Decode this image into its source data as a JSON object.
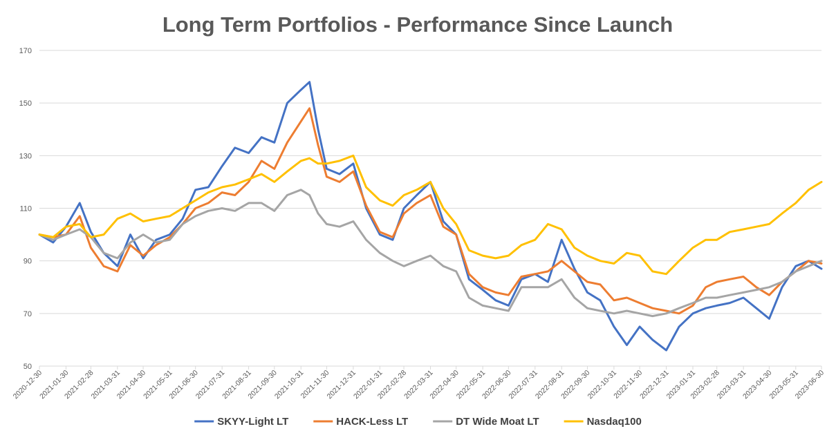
{
  "chart_data": {
    "type": "line",
    "title": "Long Term Portfolios - Performance Since Launch",
    "xlabel": "",
    "ylabel": "",
    "ylim": [
      50,
      170
    ],
    "yticks": [
      50,
      70,
      90,
      110,
      130,
      150,
      170
    ],
    "grid": true,
    "legend_position": "bottom",
    "x_tick_labels": [
      "2020-12-30",
      "2021-01-30",
      "2021-02-28",
      "2021-03-31",
      "2021-04-30",
      "2021-05-31",
      "2021-06-30",
      "2021-07-31",
      "2021-08-31",
      "2021-09-30",
      "2021-10-31",
      "2021-11-30",
      "2021-12-31",
      "2022-01-31",
      "2022-02-28",
      "2022-03-31",
      "2022-04-30",
      "2022-05-31",
      "2022-06-30",
      "2022-07-31",
      "2022-08-31",
      "2022-09-30",
      "2022-10-31",
      "2022-11-30",
      "2022-12-31",
      "2023-01-31",
      "2023-02-28",
      "2023-03-31",
      "2023-04-30",
      "2023-05-31",
      "2023-06-30"
    ],
    "x": [
      "2020-12-30",
      "2021-01-15",
      "2021-01-30",
      "2021-02-15",
      "2021-02-28",
      "2021-03-15",
      "2021-03-31",
      "2021-04-15",
      "2021-04-30",
      "2021-05-15",
      "2021-05-31",
      "2021-06-15",
      "2021-06-30",
      "2021-07-15",
      "2021-07-31",
      "2021-08-15",
      "2021-08-31",
      "2021-09-15",
      "2021-09-30",
      "2021-10-15",
      "2021-10-31",
      "2021-11-10",
      "2021-11-20",
      "2021-11-30",
      "2021-12-15",
      "2021-12-31",
      "2022-01-15",
      "2022-01-31",
      "2022-02-15",
      "2022-02-28",
      "2022-03-15",
      "2022-03-31",
      "2022-04-15",
      "2022-04-30",
      "2022-05-15",
      "2022-05-31",
      "2022-06-15",
      "2022-06-30",
      "2022-07-15",
      "2022-07-31",
      "2022-08-15",
      "2022-08-31",
      "2022-09-15",
      "2022-09-30",
      "2022-10-15",
      "2022-10-31",
      "2022-11-15",
      "2022-11-30",
      "2022-12-15",
      "2022-12-31",
      "2023-01-15",
      "2023-01-31",
      "2023-02-15",
      "2023-02-28",
      "2023-03-15",
      "2023-03-31",
      "2023-04-15",
      "2023-04-30",
      "2023-05-15",
      "2023-05-31",
      "2023-06-15",
      "2023-06-30"
    ],
    "series": [
      {
        "name": "SKYY-Light LT",
        "color": "#4472c4",
        "values": [
          100,
          97,
          103,
          112,
          101,
          93,
          88,
          100,
          91,
          98,
          100,
          106,
          117,
          118,
          126,
          133,
          131,
          137,
          135,
          150,
          155,
          158,
          140,
          125,
          123,
          127,
          110,
          100,
          98,
          110,
          115,
          120,
          105,
          100,
          83,
          79,
          75,
          73,
          83,
          85,
          82,
          98,
          87,
          78,
          75,
          65,
          58,
          65,
          60,
          56,
          65,
          70,
          72,
          73,
          74,
          76,
          72,
          68,
          80,
          88,
          90,
          87
        ]
      },
      {
        "name": "HACK-Less LT",
        "color": "#ed7d31",
        "values": [
          100,
          99,
          100,
          107,
          95,
          88,
          86,
          96,
          92,
          96,
          99,
          104,
          110,
          112,
          116,
          115,
          120,
          128,
          125,
          135,
          143,
          148,
          134,
          122,
          120,
          124,
          111,
          101,
          99,
          108,
          112,
          115,
          103,
          100,
          85,
          80,
          78,
          77,
          84,
          85,
          86,
          90,
          86,
          82,
          81,
          75,
          76,
          74,
          72,
          71,
          70,
          73,
          80,
          82,
          83,
          84,
          80,
          77,
          82,
          86,
          90,
          89
        ]
      },
      {
        "name": "DT Wide Moat LT",
        "color": "#a5a5a5",
        "values": [
          100,
          98,
          100,
          102,
          99,
          93,
          91,
          97,
          100,
          97,
          98,
          104,
          107,
          109,
          110,
          109,
          112,
          112,
          109,
          115,
          117,
          115,
          108,
          104,
          103,
          105,
          98,
          93,
          90,
          88,
          90,
          92,
          88,
          86,
          76,
          73,
          72,
          71,
          80,
          80,
          80,
          83,
          76,
          72,
          71,
          70,
          71,
          70,
          69,
          70,
          72,
          74,
          76,
          76,
          77,
          78,
          79,
          80,
          82,
          86,
          88,
          90
        ]
      },
      {
        "name": "Nasdaq100",
        "color": "#ffc000",
        "values": [
          100,
          99,
          103,
          104,
          99,
          100,
          106,
          108,
          105,
          106,
          107,
          110,
          113,
          116,
          118,
          119,
          121,
          123,
          120,
          124,
          128,
          129,
          127,
          127,
          128,
          130,
          118,
          113,
          111,
          115,
          117,
          120,
          110,
          104,
          94,
          92,
          91,
          92,
          96,
          98,
          104,
          102,
          95,
          92,
          90,
          89,
          93,
          92,
          86,
          85,
          90,
          95,
          98,
          98,
          101,
          102,
          103,
          104,
          108,
          112,
          117,
          120
        ]
      }
    ]
  }
}
